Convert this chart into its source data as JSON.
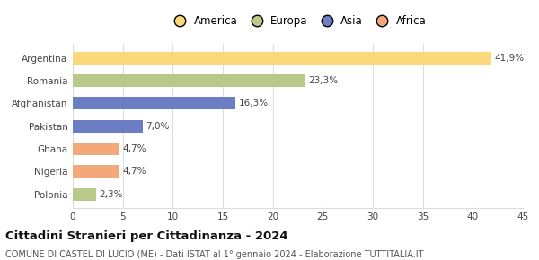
{
  "categories": [
    "Argentina",
    "Romania",
    "Afghanistan",
    "Pakistan",
    "Ghana",
    "Nigeria",
    "Polonia"
  ],
  "values": [
    41.9,
    23.3,
    16.3,
    7.0,
    4.7,
    4.7,
    2.3
  ],
  "labels": [
    "41,9%",
    "23,3%",
    "16,3%",
    "7,0%",
    "4,7%",
    "4,7%",
    "2,3%"
  ],
  "colors": [
    "#f9d97c",
    "#b8c98a",
    "#6b7ec4",
    "#6b7ec4",
    "#f2a878",
    "#f2a878",
    "#b8c98a"
  ],
  "legend_entries": [
    {
      "label": "America",
      "color": "#f9d97c"
    },
    {
      "label": "Europa",
      "color": "#b8c98a"
    },
    {
      "label": "Asia",
      "color": "#6b7ec4"
    },
    {
      "label": "Africa",
      "color": "#f2a878"
    }
  ],
  "xlim": [
    0,
    45
  ],
  "xticks": [
    0,
    5,
    10,
    15,
    20,
    25,
    30,
    35,
    40,
    45
  ],
  "title": "Cittadini Stranieri per Cittadinanza - 2024",
  "subtitle": "COMUNE DI CASTEL DI LUCIO (ME) - Dati ISTAT al 1° gennaio 2024 - Elaborazione TUTTITALIA.IT",
  "background_color": "#ffffff",
  "grid_color": "#dddddd",
  "bar_height": 0.55,
  "label_fontsize": 7.5,
  "tick_fontsize": 7.5,
  "title_fontsize": 9.5,
  "subtitle_fontsize": 7,
  "legend_fontsize": 8.5
}
